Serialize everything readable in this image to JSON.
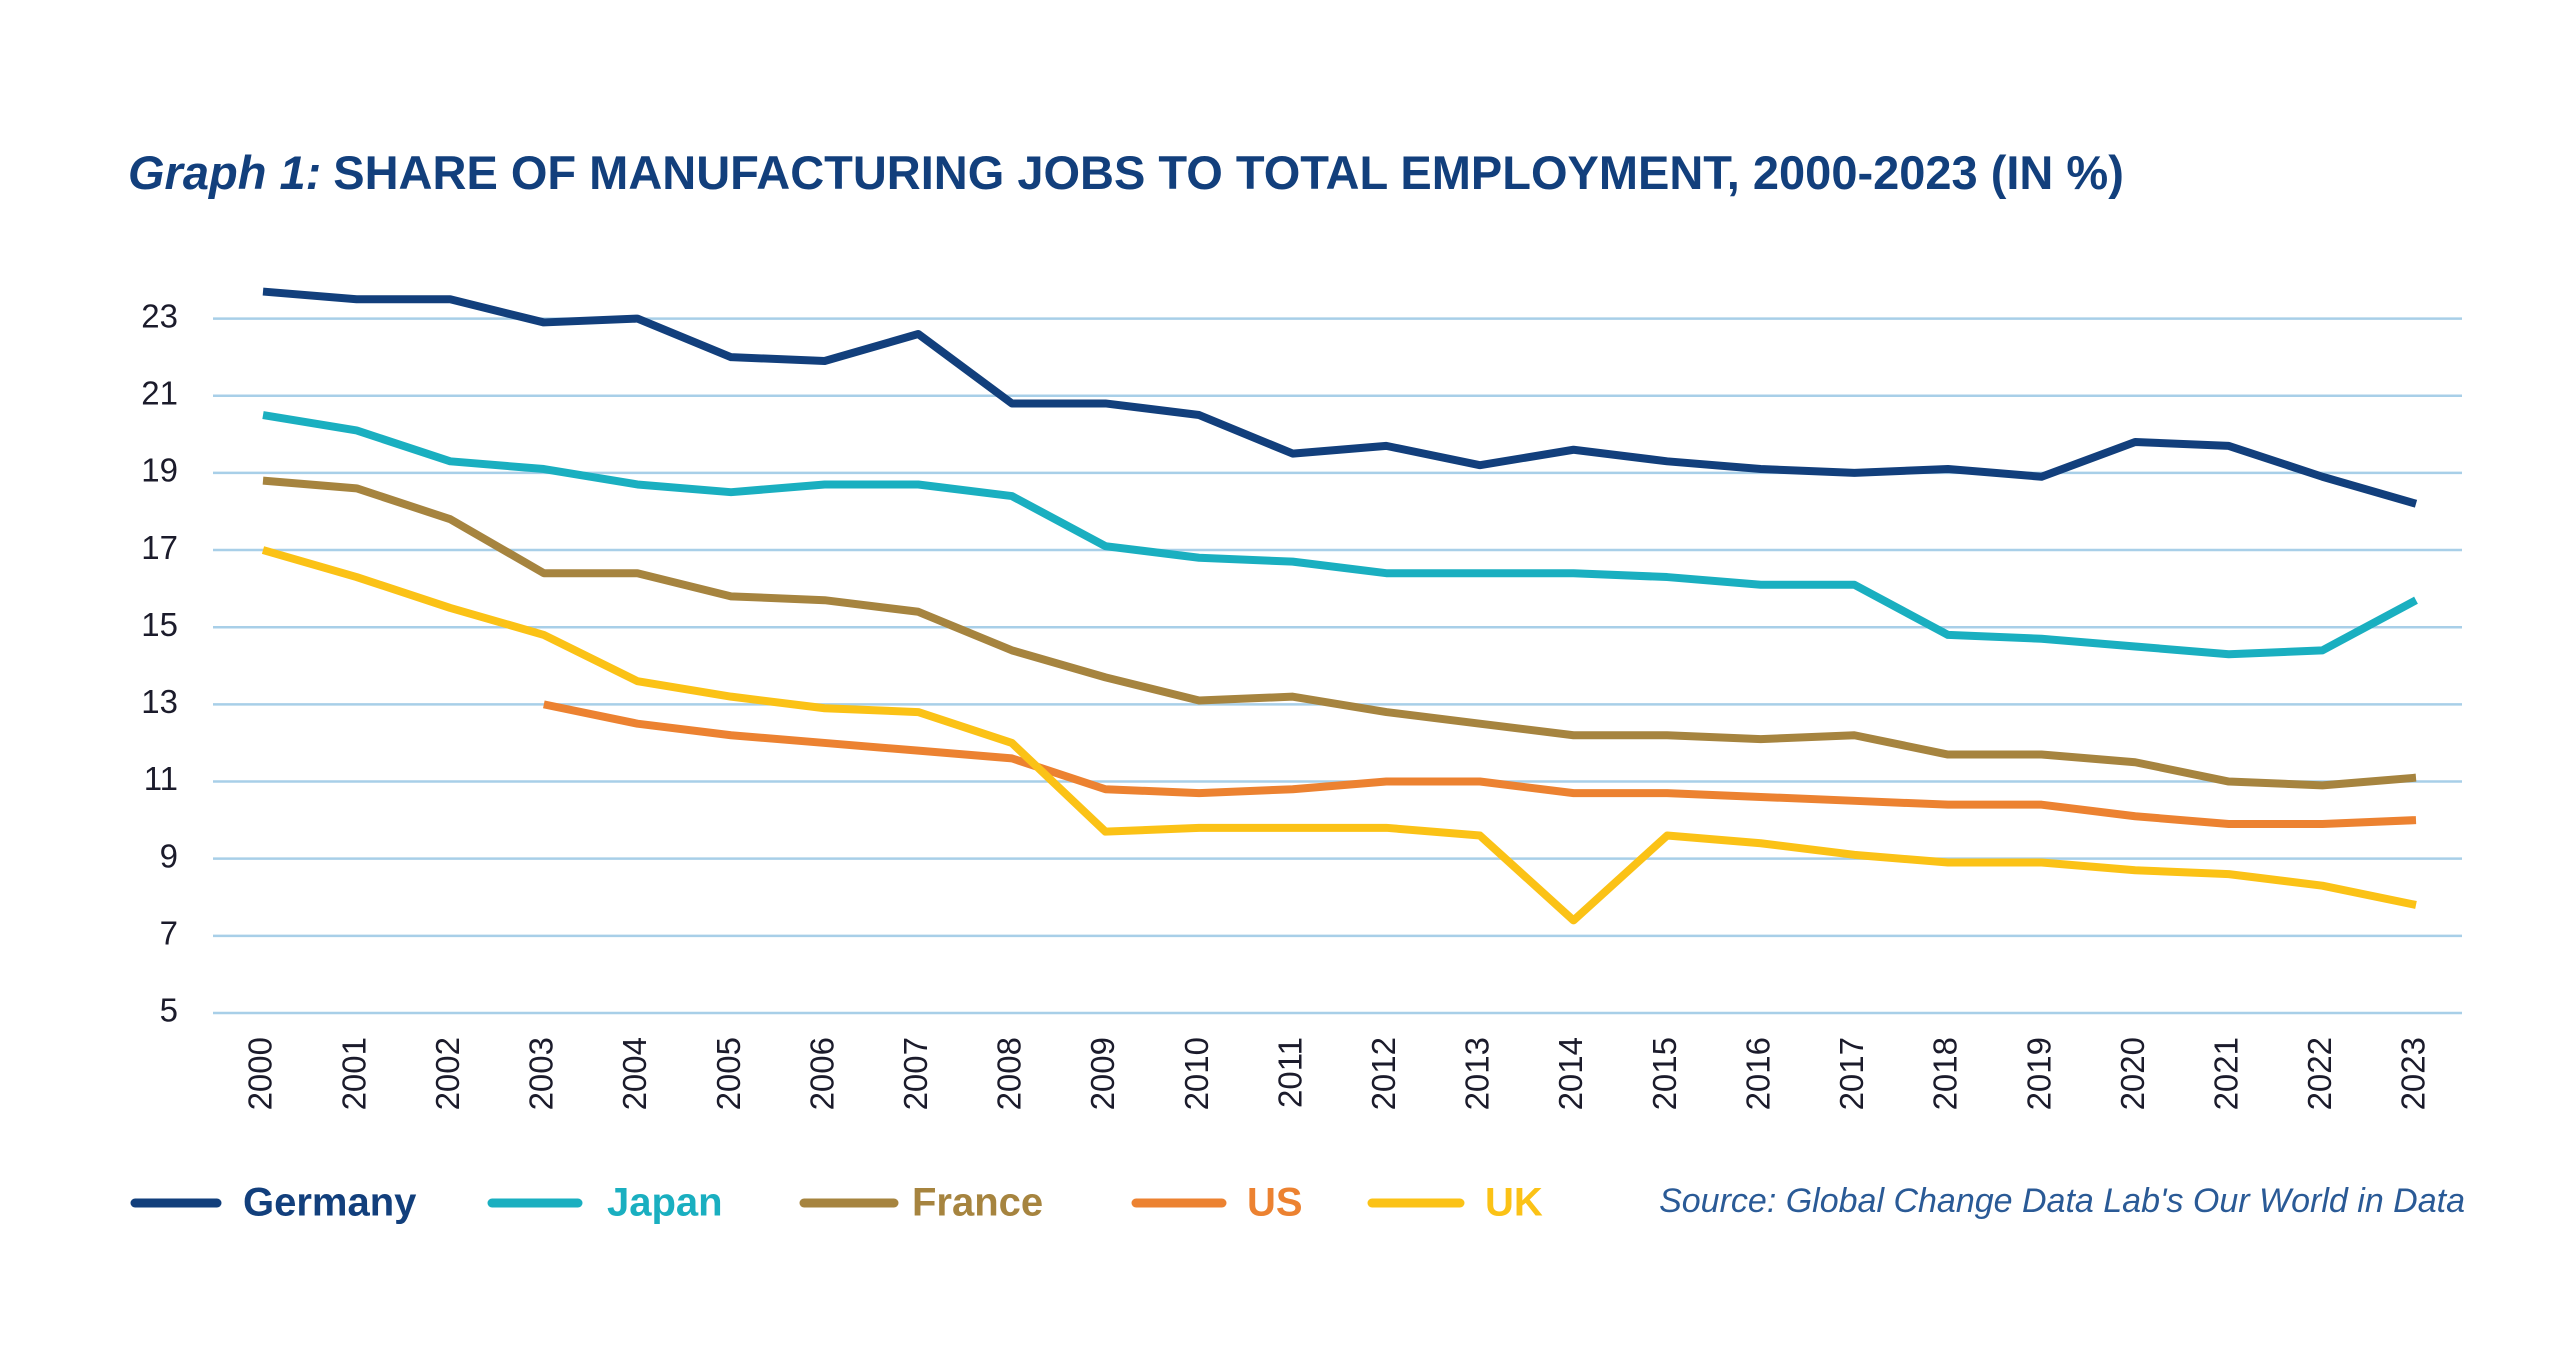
{
  "chart_data": {
    "type": "line",
    "title_prefix": "Graph 1:",
    "title": "SHARE OF MANUFACTURING JOBS TO TOTAL EMPLOYMENT, 2000-2023 (IN %)",
    "source": "Source: Global Change Data Lab's Our World in Data",
    "categories": [
      "2000",
      "2001",
      "2002",
      "2003",
      "2004",
      "2005",
      "2006",
      "2007",
      "2008",
      "2009",
      "2010",
      "2011",
      "2012",
      "2013",
      "2014",
      "2015",
      "2016",
      "2017",
      "2018",
      "2019",
      "2020",
      "2021",
      "2022",
      "2023"
    ],
    "ylim": [
      5,
      24
    ],
    "yticks": [
      5,
      7,
      9,
      11,
      13,
      15,
      17,
      19,
      21,
      23
    ],
    "grid": true,
    "series": [
      {
        "name": "Germany",
        "color": "#123f7c",
        "values": [
          23.7,
          23.5,
          23.5,
          22.9,
          23.0,
          22.0,
          21.9,
          22.6,
          20.8,
          20.8,
          20.5,
          19.5,
          19.7,
          19.2,
          19.6,
          19.3,
          19.1,
          19.0,
          19.1,
          18.9,
          19.8,
          19.7,
          18.9,
          18.2
        ]
      },
      {
        "name": "Japan",
        "color": "#1aafc0",
        "values": [
          20.5,
          20.1,
          19.3,
          19.1,
          18.7,
          18.5,
          18.7,
          18.7,
          18.4,
          17.1,
          16.8,
          16.7,
          16.4,
          16.4,
          16.4,
          16.3,
          16.1,
          16.1,
          14.8,
          14.7,
          14.5,
          14.3,
          14.4,
          15.7
        ]
      },
      {
        "name": "France",
        "color": "#a6843f",
        "values": [
          18.8,
          18.6,
          17.8,
          16.4,
          16.4,
          15.8,
          15.7,
          15.4,
          14.4,
          13.7,
          13.1,
          13.2,
          12.8,
          12.5,
          12.2,
          12.2,
          12.1,
          12.2,
          11.7,
          11.7,
          11.5,
          11.0,
          10.9,
          11.1
        ]
      },
      {
        "name": "US",
        "color": "#ec8231",
        "values": [
          null,
          null,
          null,
          13.0,
          12.5,
          12.2,
          12.0,
          11.8,
          11.6,
          10.8,
          10.7,
          10.8,
          11.0,
          11.0,
          10.7,
          10.7,
          10.6,
          10.5,
          10.4,
          10.4,
          10.1,
          9.9,
          9.9,
          10.0
        ]
      },
      {
        "name": "UK",
        "color": "#fbc216",
        "values": [
          17.0,
          16.3,
          15.5,
          14.8,
          13.6,
          13.2,
          12.9,
          12.8,
          12.0,
          9.7,
          9.8,
          9.8,
          9.8,
          9.6,
          7.4,
          9.6,
          9.4,
          9.1,
          8.9,
          8.9,
          8.7,
          8.6,
          8.3,
          7.8
        ]
      }
    ]
  }
}
